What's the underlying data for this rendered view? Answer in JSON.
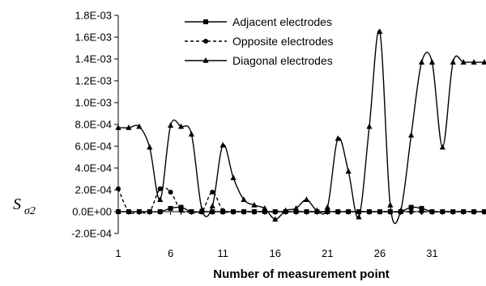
{
  "chart_data": {
    "type": "line",
    "title": "",
    "xlabel": "Number of measurement point",
    "ylabel_main": "S",
    "ylabel_sub": "σ2",
    "xlim": [
      1,
      36
    ],
    "ylim": [
      -0.0002,
      0.0018
    ],
    "x_ticks": [
      1,
      6,
      11,
      16,
      21,
      26,
      31
    ],
    "y_ticks": [
      -0.0002,
      0,
      0.0002,
      0.0004,
      0.0006,
      0.0008,
      0.001,
      0.0012,
      0.0014,
      0.0016,
      0.0018
    ],
    "y_tick_labels": [
      "-2.0E-04",
      "0.0E+00",
      "2.0E-04",
      "4.0E-04",
      "6.0E-04",
      "8.0E-04",
      "1.0E-03",
      "1.2E-03",
      "1.4E-03",
      "1.6E-03",
      "1.8E-03"
    ],
    "x": [
      1,
      2,
      3,
      4,
      5,
      6,
      7,
      8,
      9,
      10,
      11,
      12,
      13,
      14,
      15,
      16,
      17,
      18,
      19,
      20,
      21,
      22,
      23,
      24,
      25,
      26,
      27,
      28,
      29,
      30,
      31,
      32,
      33,
      34,
      35,
      36
    ],
    "grid": false,
    "legend_position": "top-center",
    "series": [
      {
        "name": "Adjacent electrodes",
        "marker": "square",
        "dash": "solid",
        "values": [
          0,
          0,
          0,
          0,
          0,
          3e-05,
          4e-05,
          0,
          0,
          0,
          0,
          0,
          0,
          0,
          0,
          0,
          0,
          0,
          0,
          0,
          0,
          0,
          0,
          0,
          0,
          0,
          0,
          0,
          4e-05,
          3e-05,
          0,
          0,
          0,
          0,
          0,
          0
        ]
      },
      {
        "name": "Opposite electrodes",
        "marker": "circle",
        "dash": "dashed",
        "values": [
          0.00021,
          0,
          0,
          0,
          0.00021,
          0.00018,
          1e-05,
          0,
          0,
          0.00018,
          1e-05,
          0,
          0,
          0,
          0,
          0,
          0,
          0,
          0,
          0,
          0,
          0,
          0,
          0,
          0,
          0,
          0,
          0,
          0,
          0,
          0,
          0,
          0,
          0,
          0,
          0
        ]
      },
      {
        "name": "Diagonal electrodes",
        "marker": "triangle",
        "dash": "solid",
        "values": [
          0.00077,
          0.00077,
          0.00078,
          0.00059,
          0.00011,
          0.00079,
          0.00078,
          0.00071,
          2e-05,
          5e-05,
          0.00061,
          0.00031,
          0.00011,
          6e-05,
          3e-05,
          -7e-05,
          1e-05,
          3e-05,
          0.00011,
          1e-05,
          4e-05,
          0.00067,
          0.00037,
          -5e-05,
          0.00078,
          0.00165,
          6e-05,
          1e-05,
          0.0007,
          0.00137,
          0.00137,
          0.00059,
          0.00137,
          0.00137,
          0.00137,
          0.00137
        ]
      }
    ]
  }
}
